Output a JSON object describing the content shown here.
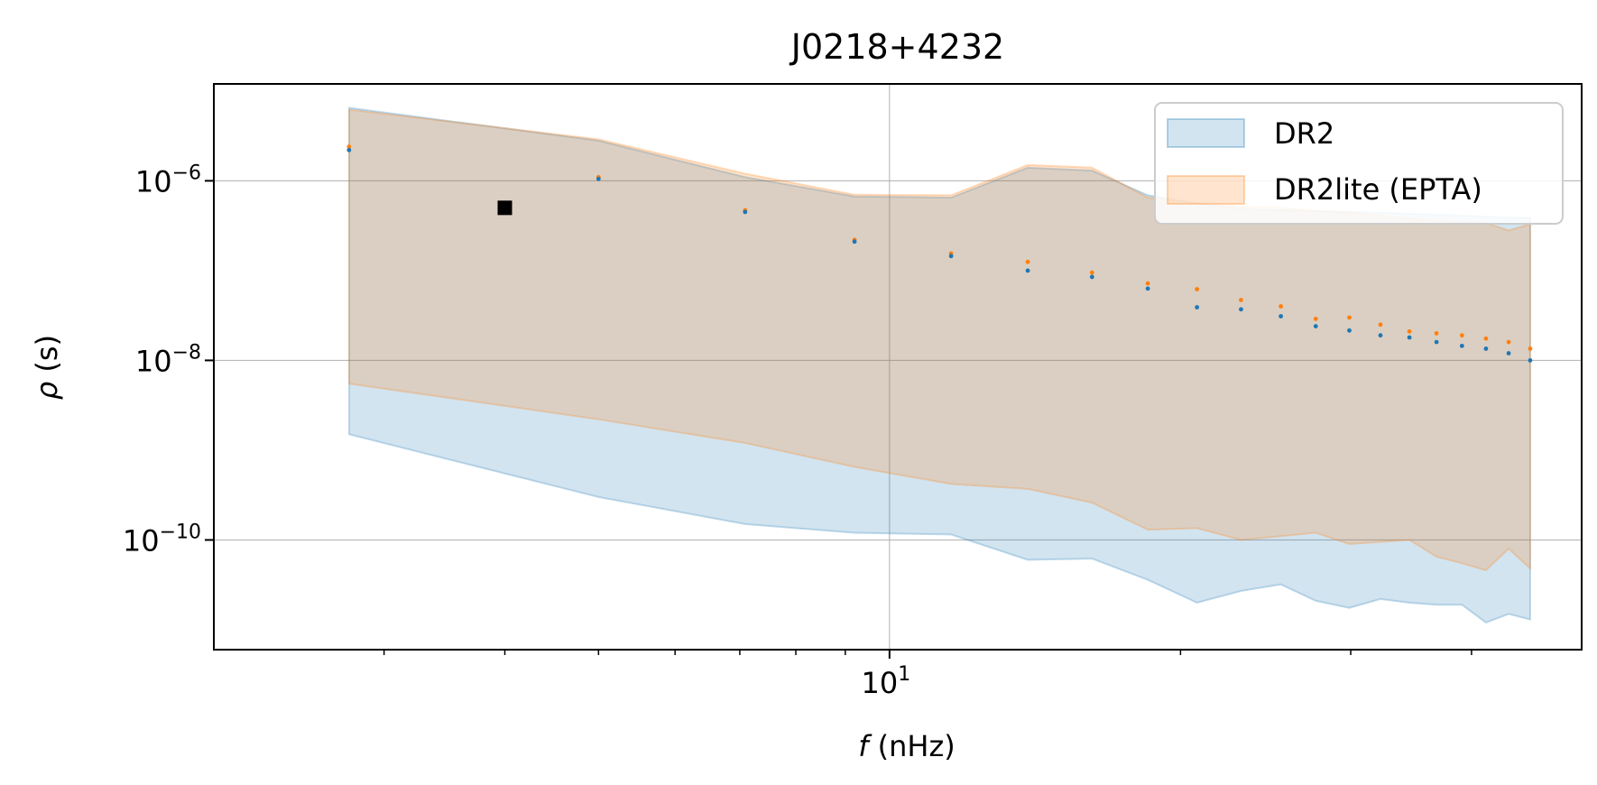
{
  "chart_data": {
    "type": "area",
    "title": "J0218+4232",
    "xlabel_italic": "f",
    "xlabel_unit": " (nHz)",
    "ylabel_italic": "ρ",
    "ylabel_unit": " (s)",
    "x_scale": "log",
    "y_scale": "log",
    "xlim": [
      2.0,
      52.0
    ],
    "ylim": [
      6e-12,
      1.2e-05
    ],
    "grid": true,
    "legend_placement": "top-right",
    "x_major_tick_base": "10",
    "x_major_tick_exp": "1",
    "y_ticks": [
      {
        "value": 1e-06,
        "base": "10",
        "exp": "−6"
      },
      {
        "value": 1e-08,
        "base": "10",
        "exp": "−8"
      },
      {
        "value": 1e-10,
        "base": "10",
        "exp": "−10"
      }
    ],
    "x_minor_ticks": [
      3,
      4,
      5,
      6,
      7,
      8,
      9,
      20,
      30,
      40
    ],
    "x": [
      2.76,
      5.0,
      7.09,
      9.2,
      11.58,
      13.9,
      16.2,
      18.5,
      20.8,
      23.1,
      25.4,
      27.6,
      29.9,
      32.2,
      34.5,
      36.8,
      39.1,
      41.4,
      43.7,
      46.0
    ],
    "series": [
      {
        "name": "DR2",
        "color": "#1f77b4",
        "upper": [
          6.5e-06,
          2.8e-06,
          1.1e-06,
          6.7e-07,
          6.5e-07,
          1.4e-06,
          1.3e-06,
          6.9e-07,
          5.6e-07,
          4.9e-07,
          4.7e-07,
          4.6e-07,
          4.5e-07,
          4.4e-07,
          4.3e-07,
          4.2e-07,
          4.1e-07,
          4e-07,
          3.9e-07,
          3.9e-07
        ],
        "lower": [
          1.5e-09,
          3e-10,
          1.5e-10,
          1.2e-10,
          1.15e-10,
          6e-11,
          6.2e-11,
          3.6e-11,
          2e-11,
          2.7e-11,
          3.2e-11,
          2.1e-11,
          1.75e-11,
          2.2e-11,
          2e-11,
          1.9e-11,
          1.9e-11,
          1.2e-11,
          1.5e-11,
          1.3e-11
        ],
        "median": [
          2.2e-06,
          1.05e-06,
          4.5e-07,
          2.1e-07,
          1.45e-07,
          1e-07,
          8.5e-08,
          6.3e-08,
          3.9e-08,
          3.7e-08,
          3.1e-08,
          2.4e-08,
          2.15e-08,
          1.9e-08,
          1.8e-08,
          1.6e-08,
          1.45e-08,
          1.35e-08,
          1.2e-08,
          1e-08
        ]
      },
      {
        "name": "DR2lite (EPTA)",
        "color": "#ff7f0e",
        "upper": [
          6.2e-06,
          2.9e-06,
          1.2e-06,
          7e-07,
          6.9e-07,
          1.5e-06,
          1.4e-06,
          6.5e-07,
          5.7e-07,
          5.2e-07,
          5e-07,
          4.7e-07,
          4.4e-07,
          4.1e-07,
          3.8e-07,
          3.6e-07,
          3.5e-07,
          3.4e-07,
          2.8e-07,
          3.3e-07
        ],
        "lower": [
          5.5e-09,
          2.2e-09,
          1.2e-09,
          6.5e-10,
          4.2e-10,
          3.7e-10,
          2.6e-10,
          1.3e-10,
          1.35e-10,
          1e-10,
          1.1e-10,
          1.2e-10,
          9e-11,
          9.5e-11,
          1e-10,
          6.5e-11,
          5.5e-11,
          4.6e-11,
          8e-11,
          4.8e-11
        ],
        "median": [
          2.4e-06,
          1.1e-06,
          4.7e-07,
          2.2e-07,
          1.55e-07,
          1.25e-07,
          9.5e-08,
          7.2e-08,
          6.2e-08,
          4.7e-08,
          4e-08,
          2.9e-08,
          3e-08,
          2.5e-08,
          2.1e-08,
          2e-08,
          1.9e-08,
          1.75e-08,
          1.6e-08,
          1.35e-08
        ]
      }
    ],
    "marker_point": {
      "x": 4.0,
      "y": 5e-07,
      "color": "#000000"
    }
  }
}
